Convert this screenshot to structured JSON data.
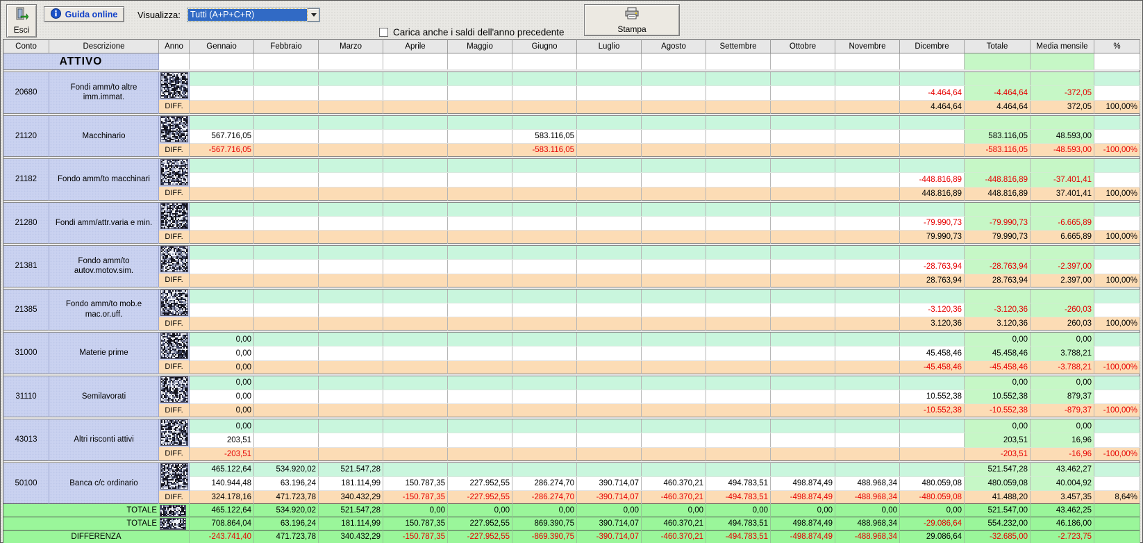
{
  "toolbar": {
    "esci_label": "Esci",
    "guida_label": "Guida online",
    "visualizza_label": "Visualizza:",
    "visualizza_value": "Tutti (A+P+C+R)",
    "checkbox_label": "Carica anche i saldi dell'anno precedente",
    "checkbox_checked": false,
    "stampa_label": "Stampa",
    "icons": [
      "exit-door-icon",
      "info-icon",
      "combo-arrow-icon",
      "printer-icon"
    ]
  },
  "colors": {
    "negative_text": "#e60000",
    "current_year_row": "#c9f6dd",
    "total_columns": "#c6f7c6",
    "diff_row": "#fcdcb5",
    "account_panel": "#cad2f0",
    "footer_green": "#9af69a",
    "selection_blue": "#316ac5",
    "guida_blue": "#1141c8"
  },
  "table": {
    "headers": [
      "Conto",
      "Descrizione",
      "Anno",
      "Gennaio",
      "Febbraio",
      "Marzo",
      "Aprile",
      "Maggio",
      "Giugno",
      "Luglio",
      "Agosto",
      "Settembre",
      "Ottobre",
      "Novembre",
      "Dicembre",
      "Totale",
      "Media mensile",
      "%"
    ],
    "section_label": "ATTIVO",
    "diff_label": "DIFF.",
    "anno_redacted": true,
    "accounts": [
      {
        "conto": "20680",
        "descrizione": "Fondi amm/to altre imm.immat.",
        "rows": [
          [
            "",
            "",
            "",
            "",
            "",
            "",
            "",
            "",
            "",
            "",
            "",
            "",
            "",
            "",
            ""
          ],
          [
            "",
            "",
            "",
            "",
            "",
            "",
            "",
            "",
            "",
            "",
            "",
            "-4.464,64",
            "-4.464,64",
            "-372,05",
            ""
          ],
          [
            "",
            "",
            "",
            "",
            "",
            "",
            "",
            "",
            "",
            "",
            "",
            "4.464,64",
            "4.464,64",
            "372,05",
            "100,00%"
          ]
        ]
      },
      {
        "conto": "21120",
        "descrizione": "Macchinario",
        "rows": [
          [
            "",
            "",
            "",
            "",
            "",
            "",
            "",
            "",
            "",
            "",
            "",
            "",
            "",
            "",
            ""
          ],
          [
            "567.716,05",
            "",
            "",
            "",
            "",
            "583.116,05",
            "",
            "",
            "",
            "",
            "",
            "",
            "583.116,05",
            "48.593,00",
            ""
          ],
          [
            "-567.716,05",
            "",
            "",
            "",
            "",
            "-583.116,05",
            "",
            "",
            "",
            "",
            "",
            "",
            "-583.116,05",
            "-48.593,00",
            "-100,00%"
          ]
        ]
      },
      {
        "conto": "21182",
        "descrizione": "Fondo amm/to macchinari",
        "rows": [
          [
            "",
            "",
            "",
            "",
            "",
            "",
            "",
            "",
            "",
            "",
            "",
            "",
            "",
            "",
            ""
          ],
          [
            "",
            "",
            "",
            "",
            "",
            "",
            "",
            "",
            "",
            "",
            "",
            "-448.816,89",
            "-448.816,89",
            "-37.401,41",
            ""
          ],
          [
            "",
            "",
            "",
            "",
            "",
            "",
            "",
            "",
            "",
            "",
            "",
            "448.816,89",
            "448.816,89",
            "37.401,41",
            "100,00%"
          ]
        ]
      },
      {
        "conto": "21280",
        "descrizione": "Fondi amm/attr.varia e min.",
        "rows": [
          [
            "",
            "",
            "",
            "",
            "",
            "",
            "",
            "",
            "",
            "",
            "",
            "",
            "",
            "",
            ""
          ],
          [
            "",
            "",
            "",
            "",
            "",
            "",
            "",
            "",
            "",
            "",
            "",
            "-79.990,73",
            "-79.990,73",
            "-6.665,89",
            ""
          ],
          [
            "",
            "",
            "",
            "",
            "",
            "",
            "",
            "",
            "",
            "",
            "",
            "79.990,73",
            "79.990,73",
            "6.665,89",
            "100,00%"
          ]
        ]
      },
      {
        "conto": "21381",
        "descrizione": "Fondo amm/to autov.motov.sim.",
        "rows": [
          [
            "",
            "",
            "",
            "",
            "",
            "",
            "",
            "",
            "",
            "",
            "",
            "",
            "",
            "",
            ""
          ],
          [
            "",
            "",
            "",
            "",
            "",
            "",
            "",
            "",
            "",
            "",
            "",
            "-28.763,94",
            "-28.763,94",
            "-2.397,00",
            ""
          ],
          [
            "",
            "",
            "",
            "",
            "",
            "",
            "",
            "",
            "",
            "",
            "",
            "28.763,94",
            "28.763,94",
            "2.397,00",
            "100,00%"
          ]
        ]
      },
      {
        "conto": "21385",
        "descrizione": "Fondo amm/to mob.e mac.or.uff.",
        "rows": [
          [
            "",
            "",
            "",
            "",
            "",
            "",
            "",
            "",
            "",
            "",
            "",
            "",
            "",
            "",
            ""
          ],
          [
            "",
            "",
            "",
            "",
            "",
            "",
            "",
            "",
            "",
            "",
            "",
            "-3.120,36",
            "-3.120,36",
            "-260,03",
            ""
          ],
          [
            "",
            "",
            "",
            "",
            "",
            "",
            "",
            "",
            "",
            "",
            "",
            "3.120,36",
            "3.120,36",
            "260,03",
            "100,00%"
          ]
        ]
      },
      {
        "conto": "31000",
        "descrizione": "Materie prime",
        "rows": [
          [
            "0,00",
            "",
            "",
            "",
            "",
            "",
            "",
            "",
            "",
            "",
            "",
            "",
            "0,00",
            "0,00",
            ""
          ],
          [
            "0,00",
            "",
            "",
            "",
            "",
            "",
            "",
            "",
            "",
            "",
            "",
            "45.458,46",
            "45.458,46",
            "3.788,21",
            ""
          ],
          [
            "0,00",
            "",
            "",
            "",
            "",
            "",
            "",
            "",
            "",
            "",
            "",
            "-45.458,46",
            "-45.458,46",
            "-3.788,21",
            "-100,00%"
          ]
        ]
      },
      {
        "conto": "31110",
        "descrizione": "Semilavorati",
        "rows": [
          [
            "0,00",
            "",
            "",
            "",
            "",
            "",
            "",
            "",
            "",
            "",
            "",
            "",
            "0,00",
            "0,00",
            ""
          ],
          [
            "0,00",
            "",
            "",
            "",
            "",
            "",
            "",
            "",
            "",
            "",
            "",
            "10.552,38",
            "10.552,38",
            "879,37",
            ""
          ],
          [
            "0,00",
            "",
            "",
            "",
            "",
            "",
            "",
            "",
            "",
            "",
            "",
            "-10.552,38",
            "-10.552,38",
            "-879,37",
            "-100,00%"
          ]
        ]
      },
      {
        "conto": "43013",
        "descrizione": "Altri risconti attivi",
        "rows": [
          [
            "0,00",
            "",
            "",
            "",
            "",
            "",
            "",
            "",
            "",
            "",
            "",
            "",
            "0,00",
            "0,00",
            ""
          ],
          [
            "203,51",
            "",
            "",
            "",
            "",
            "",
            "",
            "",
            "",
            "",
            "",
            "",
            "203,51",
            "16,96",
            ""
          ],
          [
            "-203,51",
            "",
            "",
            "",
            "",
            "",
            "",
            "",
            "",
            "",
            "",
            "",
            "-203,51",
            "-16,96",
            "-100,00%"
          ]
        ]
      },
      {
        "conto": "50100",
        "descrizione": "Banca c/c ordinario",
        "rows": [
          [
            "465.122,64",
            "534.920,02",
            "521.547,28",
            "",
            "",
            "",
            "",
            "",
            "",
            "",
            "",
            "",
            "521.547,28",
            "43.462,27",
            ""
          ],
          [
            "140.944,48",
            "63.196,24",
            "181.114,99",
            "150.787,35",
            "227.952,55",
            "286.274,70",
            "390.714,07",
            "460.370,21",
            "494.783,51",
            "498.874,49",
            "488.968,34",
            "480.059,08",
            "480.059,08",
            "40.004,92",
            ""
          ],
          [
            "324.178,16",
            "471.723,78",
            "340.432,29",
            "-150.787,35",
            "-227.952,55",
            "-286.274,70",
            "-390.714,07",
            "-460.370,21",
            "-494.783,51",
            "-498.874,49",
            "-488.968,34",
            "-480.059,08",
            "41.488,20",
            "3.457,35",
            "8,64%"
          ]
        ]
      }
    ],
    "footer": [
      {
        "label": "TOTALE",
        "has_noise": true,
        "values": [
          "465.122,64",
          "534.920,02",
          "521.547,28",
          "0,00",
          "0,00",
          "0,00",
          "0,00",
          "0,00",
          "0,00",
          "0,00",
          "0,00",
          "0,00",
          "521.547,00",
          "43.462,25",
          ""
        ]
      },
      {
        "label": "TOTALE",
        "has_noise": true,
        "values": [
          "708.864,04",
          "63.196,24",
          "181.114,99",
          "150.787,35",
          "227.952,55",
          "869.390,75",
          "390.714,07",
          "460.370,21",
          "494.783,51",
          "498.874,49",
          "488.968,34",
          "-29.086,64",
          "554.232,00",
          "46.186,00",
          ""
        ]
      },
      {
        "label": "DIFFERENZA",
        "has_noise": false,
        "values": [
          "-243.741,40",
          "471.723,78",
          "340.432,29",
          "-150.787,35",
          "-227.952,55",
          "-869.390,75",
          "-390.714,07",
          "-460.370,21",
          "-494.783,51",
          "-498.874,49",
          "-488.968,34",
          "29.086,64",
          "-32.685,00",
          "-2.723,75",
          ""
        ]
      }
    ]
  }
}
